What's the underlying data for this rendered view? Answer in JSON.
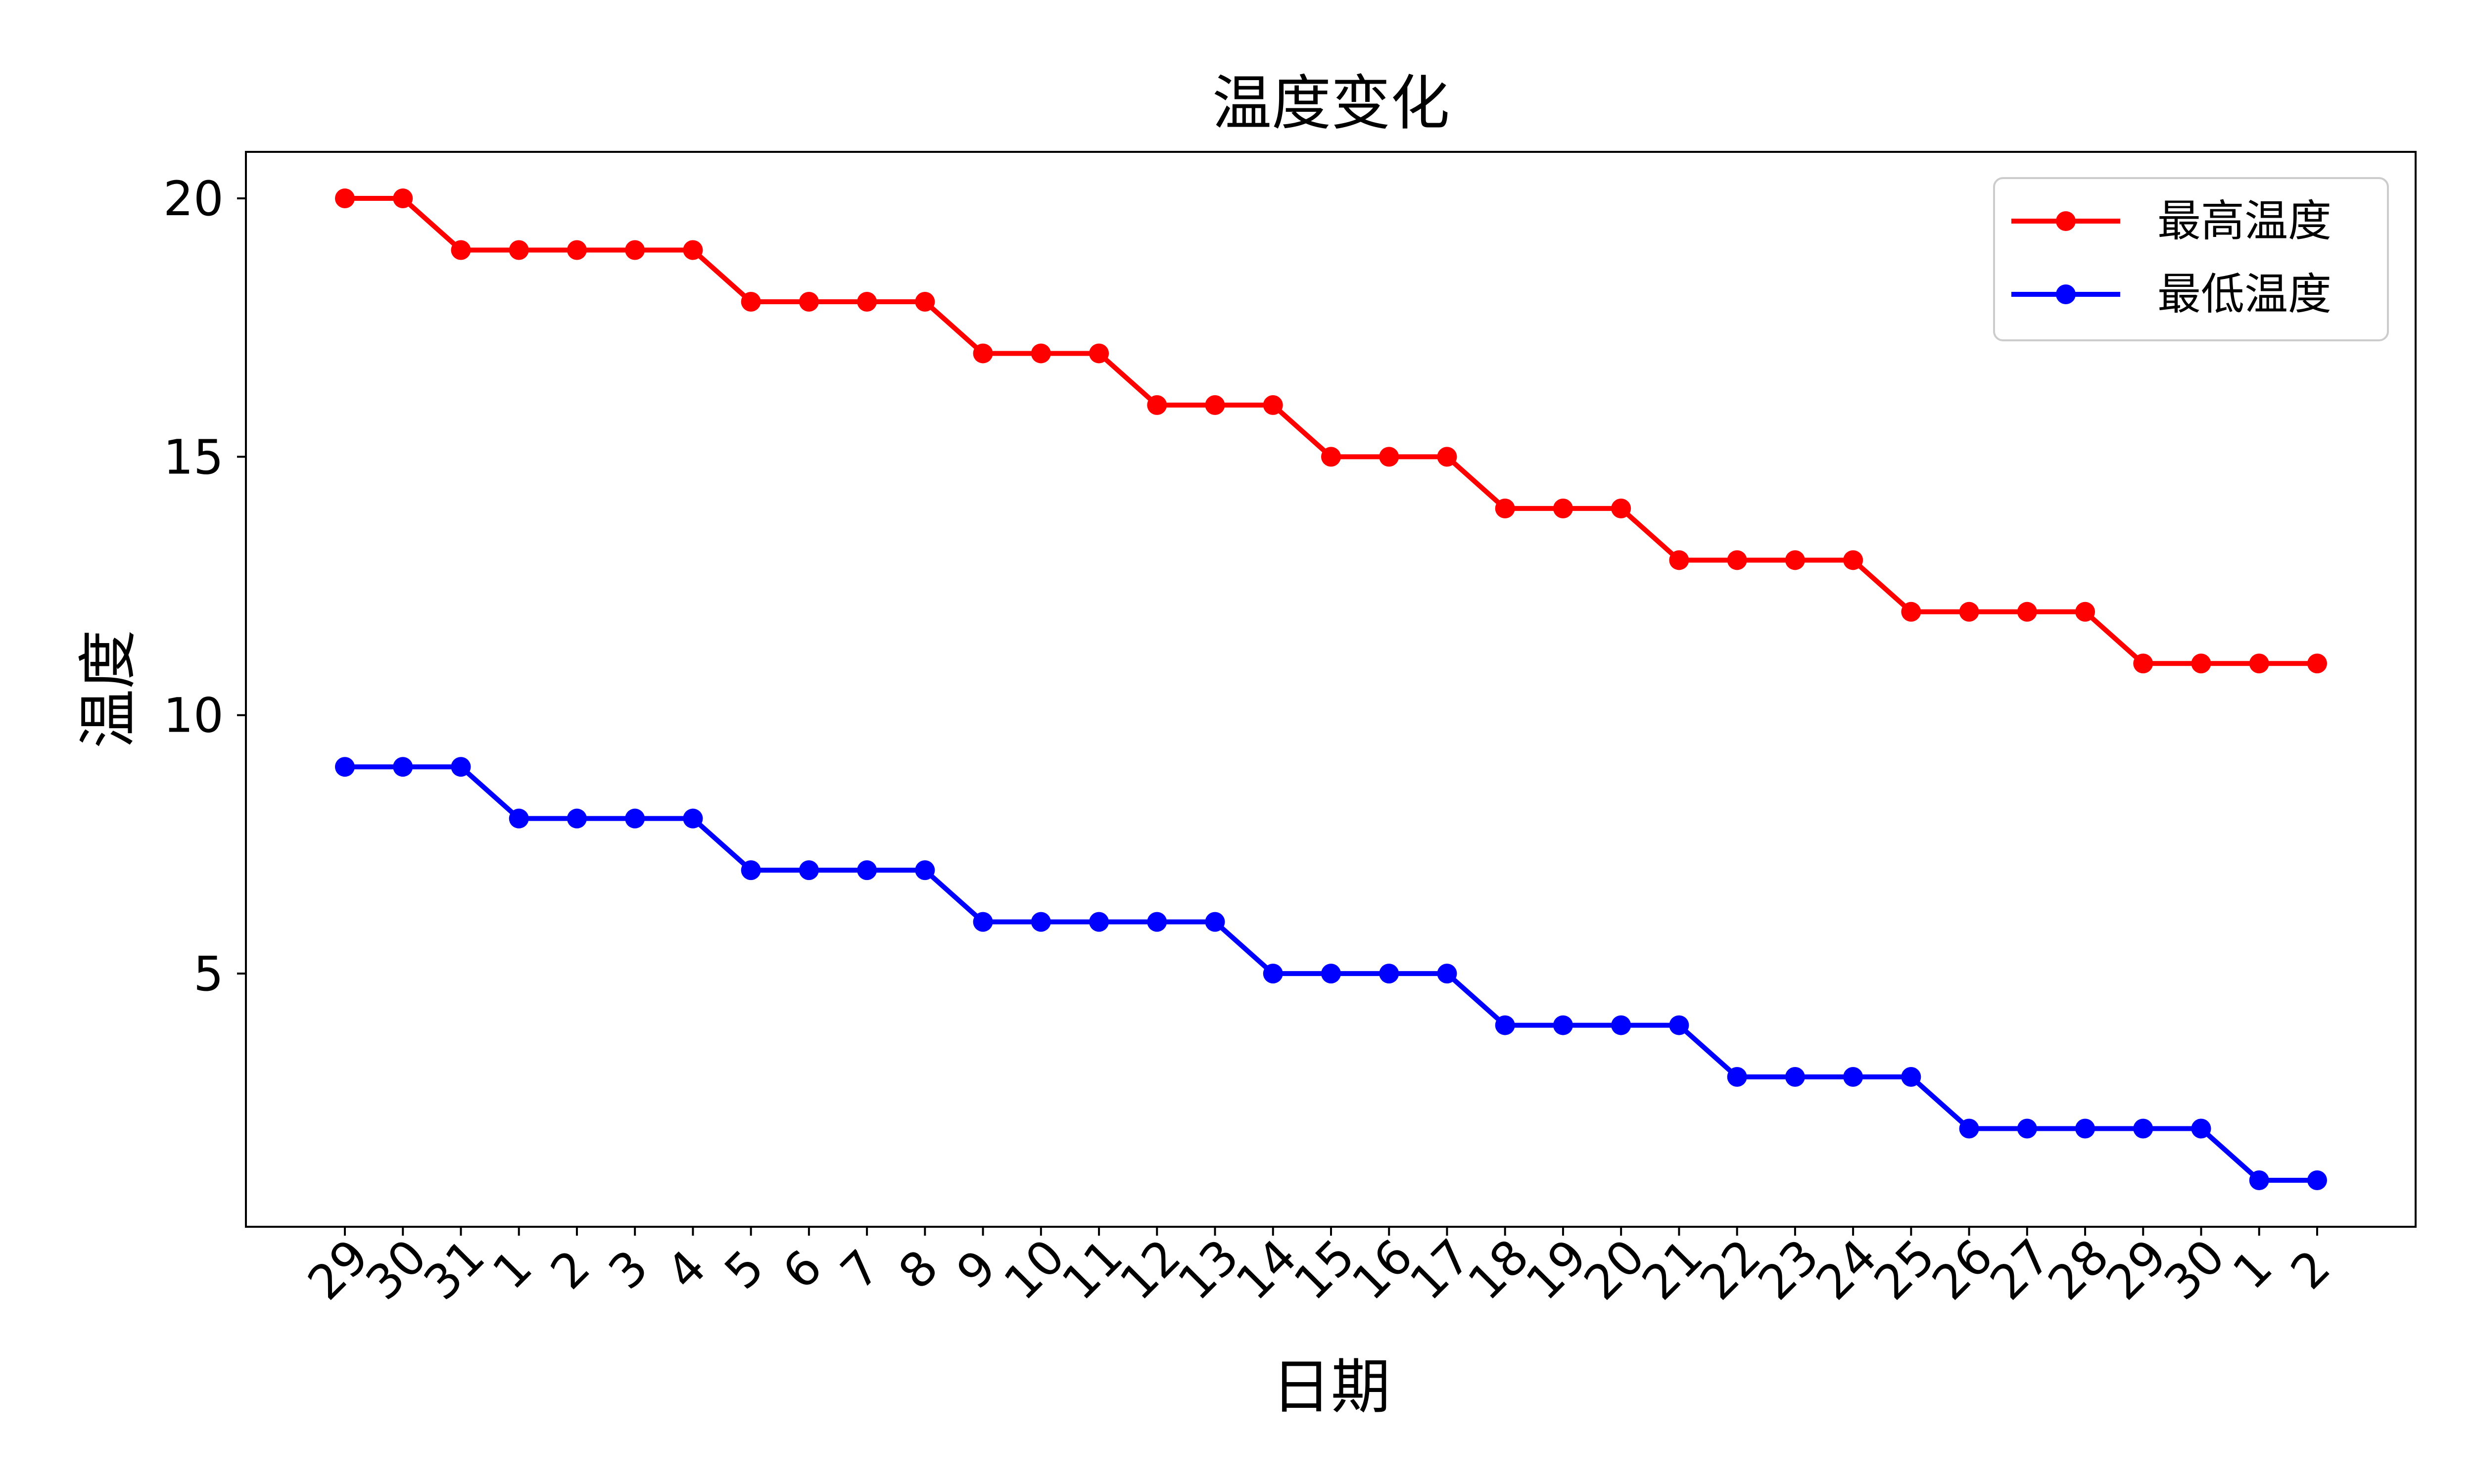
{
  "chart_data": {
    "type": "line",
    "title": "温度变化",
    "xlabel": "日期",
    "ylabel": "温度",
    "categories": [
      "29",
      "30",
      "31",
      "1",
      "2",
      "3",
      "4",
      "5",
      "6",
      "7",
      "8",
      "9",
      "10",
      "11",
      "12",
      "13",
      "14",
      "15",
      "16",
      "17",
      "18",
      "19",
      "20",
      "21",
      "22",
      "23",
      "24",
      "25",
      "26",
      "27",
      "28",
      "29",
      "30",
      "1",
      "2"
    ],
    "y_ticks": [
      5,
      10,
      15,
      20
    ],
    "ylim": [
      0.1,
      20.9
    ],
    "grid": false,
    "legend_position": "top-right",
    "series": [
      {
        "name": "最高温度",
        "color": "#ff0000",
        "values": [
          20,
          20,
          19,
          19,
          19,
          19,
          19,
          18,
          18,
          18,
          18,
          17,
          17,
          17,
          16,
          16,
          16,
          15,
          15,
          15,
          14,
          14,
          14,
          13,
          13,
          13,
          13,
          12,
          12,
          12,
          12,
          11,
          11,
          11,
          11
        ]
      },
      {
        "name": "最低温度",
        "color": "#0000ff",
        "values": [
          9,
          9,
          9,
          8,
          8,
          8,
          8,
          7,
          7,
          7,
          7,
          6,
          6,
          6,
          6,
          6,
          5,
          5,
          5,
          5,
          4,
          4,
          4,
          4,
          3,
          3,
          3,
          3,
          2,
          2,
          2,
          2,
          2,
          1,
          1
        ]
      }
    ]
  }
}
